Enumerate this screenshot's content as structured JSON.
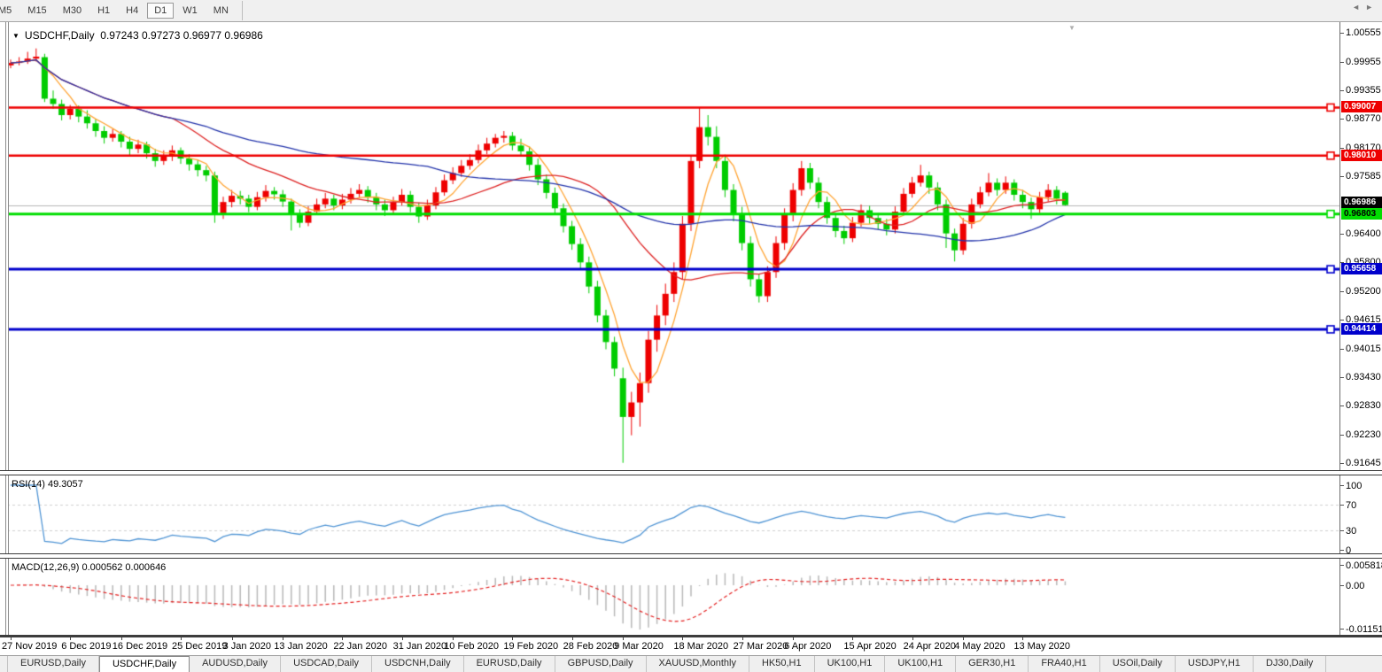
{
  "toolbar": {
    "timeframes": [
      "M5",
      "M15",
      "M30",
      "H1",
      "H4",
      "D1",
      "W1",
      "MN"
    ],
    "active_timeframe": "D1"
  },
  "chart": {
    "title": "USDCHF,Daily",
    "ohlc": "0.97243 0.97273 0.96977 0.96986",
    "open": "0.97243",
    "high": "0.97273",
    "low": "0.96977",
    "close": "0.96986",
    "shift_marker_icon": "triangle-down"
  },
  "price_axis": {
    "ticks": [
      "1.00555",
      "0.99955",
      "0.99355",
      "0.98770",
      "0.98170",
      "0.97585",
      "0.96400",
      "0.95800",
      "0.95200",
      "0.94615",
      "0.94015",
      "0.93430",
      "0.92830",
      "0.92230",
      "0.91645"
    ],
    "current_price_tag": {
      "label": "0.96986",
      "value": 0.96986,
      "bg": "#000000",
      "fg": "#ffffff"
    }
  },
  "hlines": [
    {
      "label": "0.99007",
      "value": 0.99007,
      "color": "#ee0000",
      "fg": "#ffffff",
      "width": 2.4
    },
    {
      "label": "0.98010",
      "value": 0.9801,
      "color": "#ee0000",
      "fg": "#ffffff",
      "width": 2.4
    },
    {
      "label": "0.96803",
      "value": 0.96803,
      "color": "#00dd00",
      "fg": "#000000",
      "width": 3
    },
    {
      "label": "0.95658",
      "value": 0.95658,
      "color": "#0000cc",
      "fg": "#ffffff",
      "width": 3
    },
    {
      "label": "0.94414",
      "value": 0.94414,
      "color": "#0000cc",
      "fg": "#ffffff",
      "width": 3
    }
  ],
  "rsi": {
    "label": "RSI(14)",
    "value": "49.3057",
    "scale": [
      "100",
      "70",
      "30",
      "0"
    ],
    "levels": [
      70,
      30
    ],
    "line_color": "#4f94d4"
  },
  "macd": {
    "label": "MACD(12,26,9)",
    "values": "0.000562 0.000646",
    "scale": [
      "0.005818",
      "0.00",
      "-0.01151"
    ],
    "bar_color": "#b8b8b8",
    "signal_color": "#e42222"
  },
  "tabs": {
    "items": [
      "EURUSD,Daily",
      "USDCHF,Daily",
      "AUDUSD,Daily",
      "USDCAD,Daily",
      "USDCNH,Daily",
      "EURUSD,Daily",
      "GBPUSD,Daily",
      "XAUUSD,Monthly",
      "HK50,H1",
      "UK100,H1",
      "UK100,H1",
      "GER30,H1",
      "FRA40,H1",
      "USOil,Daily",
      "USDJPY,H1",
      "DJ30,Daily"
    ],
    "active_index": 1,
    "scroll_arrows": [
      "left-arrow-icon",
      "right-arrow-icon"
    ]
  },
  "chart_data": {
    "type": "candlestick",
    "symbol": "USDCHF",
    "timeframe": "Daily",
    "title": "USDCHF,Daily",
    "up_color": "#ee0000",
    "down_color": "#00cc00",
    "price_range_visible": [
      0.91645,
      1.00555
    ],
    "current_price": 0.96986,
    "grid": false,
    "x_ticks": [
      {
        "label": "27 Nov 2019",
        "i": 0
      },
      {
        "label": "6 Dec 2019",
        "i": 7
      },
      {
        "label": "16 Dec 2019",
        "i": 13
      },
      {
        "label": "25 Dec 2019",
        "i": 20
      },
      {
        "label": "3 Jan 2020",
        "i": 26
      },
      {
        "label": "13 Jan 2020",
        "i": 32
      },
      {
        "label": "22 Jan 2020",
        "i": 39
      },
      {
        "label": "31 Jan 2020",
        "i": 46
      },
      {
        "label": "10 Feb 2020",
        "i": 52
      },
      {
        "label": "19 Feb 2020",
        "i": 59
      },
      {
        "label": "28 Feb 2020",
        "i": 66
      },
      {
        "label": "9 Mar 2020",
        "i": 72
      },
      {
        "label": "18 Mar 2020",
        "i": 79
      },
      {
        "label": "27 Mar 2020",
        "i": 86
      },
      {
        "label": "6 Apr 2020",
        "i": 92
      },
      {
        "label": "15 Apr 2020",
        "i": 99
      },
      {
        "label": "24 Apr 2020",
        "i": 106
      },
      {
        "label": "4 May 2020",
        "i": 112
      },
      {
        "label": "13 May 2020",
        "i": 119
      }
    ],
    "moving_averages": [
      {
        "period": 5,
        "color": "#ffa433"
      },
      {
        "period": 20,
        "color": "#dd2222"
      },
      {
        "period": 50,
        "color": "#2233aa"
      }
    ],
    "candles": [
      [
        0.9988,
        1.0,
        0.9982,
        0.9993
      ],
      [
        0.9993,
        1.0005,
        0.9988,
        0.9996
      ],
      [
        0.9996,
        1.0016,
        0.9991,
        1.0002
      ],
      [
        1.0002,
        1.0023,
        0.9996,
        1.0006
      ],
      [
        1.0005,
        1.0012,
        0.9912,
        0.9919
      ],
      [
        0.9919,
        0.9936,
        0.9898,
        0.9908
      ],
      [
        0.9908,
        0.9917,
        0.9874,
        0.9885
      ],
      [
        0.9885,
        0.9906,
        0.9876,
        0.9898
      ],
      [
        0.9898,
        0.9905,
        0.987,
        0.9882
      ],
      [
        0.9882,
        0.9895,
        0.9857,
        0.9868
      ],
      [
        0.9868,
        0.9877,
        0.984,
        0.9852
      ],
      [
        0.9852,
        0.9862,
        0.9826,
        0.9838
      ],
      [
        0.9838,
        0.9856,
        0.983,
        0.9846
      ],
      [
        0.9846,
        0.9852,
        0.9818,
        0.983
      ],
      [
        0.983,
        0.984,
        0.9802,
        0.9815
      ],
      [
        0.9815,
        0.9834,
        0.9806,
        0.9824
      ],
      [
        0.9824,
        0.983,
        0.9795,
        0.9806
      ],
      [
        0.9806,
        0.9815,
        0.9778,
        0.979
      ],
      [
        0.979,
        0.9812,
        0.9782,
        0.98
      ],
      [
        0.98,
        0.9822,
        0.979,
        0.9812
      ],
      [
        0.9812,
        0.9818,
        0.9784,
        0.9795
      ],
      [
        0.9795,
        0.9804,
        0.977,
        0.9783
      ],
      [
        0.9783,
        0.9792,
        0.9758,
        0.9771
      ],
      [
        0.9771,
        0.978,
        0.9748,
        0.976
      ],
      [
        0.976,
        0.9768,
        0.9662,
        0.968
      ],
      [
        0.968,
        0.9716,
        0.967,
        0.9705
      ],
      [
        0.9705,
        0.973,
        0.9694,
        0.9718
      ],
      [
        0.9718,
        0.9728,
        0.97,
        0.9712
      ],
      [
        0.9712,
        0.972,
        0.9684,
        0.9695
      ],
      [
        0.9695,
        0.9726,
        0.9688,
        0.9715
      ],
      [
        0.9715,
        0.974,
        0.9706,
        0.9728
      ],
      [
        0.9728,
        0.9736,
        0.971,
        0.9721
      ],
      [
        0.9721,
        0.973,
        0.9695,
        0.9706
      ],
      [
        0.9706,
        0.9712,
        0.9646,
        0.968
      ],
      [
        0.968,
        0.969,
        0.9652,
        0.9662
      ],
      [
        0.9662,
        0.9696,
        0.9655,
        0.9685
      ],
      [
        0.9685,
        0.9712,
        0.9678,
        0.97
      ],
      [
        0.97,
        0.9724,
        0.9692,
        0.9712
      ],
      [
        0.9712,
        0.972,
        0.9688,
        0.9698
      ],
      [
        0.9698,
        0.9722,
        0.969,
        0.971
      ],
      [
        0.971,
        0.9734,
        0.9702,
        0.9722
      ],
      [
        0.9722,
        0.9742,
        0.9714,
        0.973
      ],
      [
        0.973,
        0.9738,
        0.9704,
        0.9715
      ],
      [
        0.9715,
        0.9724,
        0.9688,
        0.97
      ],
      [
        0.97,
        0.971,
        0.9676,
        0.9688
      ],
      [
        0.9688,
        0.9716,
        0.968,
        0.9705
      ],
      [
        0.9705,
        0.9732,
        0.9698,
        0.972
      ],
      [
        0.972,
        0.9728,
        0.9684,
        0.9695
      ],
      [
        0.9695,
        0.9704,
        0.9662,
        0.9675
      ],
      [
        0.9675,
        0.971,
        0.9668,
        0.9698
      ],
      [
        0.9698,
        0.9736,
        0.969,
        0.9725
      ],
      [
        0.9725,
        0.9762,
        0.9718,
        0.975
      ],
      [
        0.975,
        0.9777,
        0.9742,
        0.9765
      ],
      [
        0.9765,
        0.9792,
        0.9757,
        0.978
      ],
      [
        0.978,
        0.9804,
        0.9772,
        0.9792
      ],
      [
        0.9792,
        0.9824,
        0.9785,
        0.9812
      ],
      [
        0.9812,
        0.9838,
        0.9804,
        0.9826
      ],
      [
        0.9826,
        0.9846,
        0.9818,
        0.9838
      ],
      [
        0.9838,
        0.9852,
        0.9828,
        0.9842
      ],
      [
        0.9842,
        0.985,
        0.9812,
        0.9822
      ],
      [
        0.9822,
        0.9836,
        0.98,
        0.981
      ],
      [
        0.981,
        0.982,
        0.977,
        0.9782
      ],
      [
        0.9782,
        0.9795,
        0.974,
        0.9752
      ],
      [
        0.9752,
        0.9762,
        0.9712,
        0.9724
      ],
      [
        0.9724,
        0.9735,
        0.968,
        0.9692
      ],
      [
        0.9692,
        0.9702,
        0.9642,
        0.9655
      ],
      [
        0.9655,
        0.9666,
        0.9606,
        0.9618
      ],
      [
        0.9618,
        0.963,
        0.9566,
        0.958
      ],
      [
        0.958,
        0.9592,
        0.9516,
        0.953
      ],
      [
        0.953,
        0.9542,
        0.9456,
        0.947
      ],
      [
        0.947,
        0.9482,
        0.94,
        0.9415
      ],
      [
        0.9415,
        0.9426,
        0.9344,
        0.936
      ],
      [
        0.934,
        0.9362,
        0.9165,
        0.926
      ],
      [
        0.926,
        0.9312,
        0.9222,
        0.929
      ],
      [
        0.929,
        0.9352,
        0.924,
        0.933
      ],
      [
        0.933,
        0.9438,
        0.931,
        0.942
      ],
      [
        0.942,
        0.9492,
        0.9395,
        0.947
      ],
      [
        0.947,
        0.9536,
        0.945,
        0.9515
      ],
      [
        0.9515,
        0.958,
        0.9498,
        0.956
      ],
      [
        0.956,
        0.9676,
        0.9545,
        0.966
      ],
      [
        0.966,
        0.98,
        0.9645,
        0.979
      ],
      [
        0.979,
        0.9901,
        0.9775,
        0.986
      ],
      [
        0.986,
        0.9885,
        0.9822,
        0.984
      ],
      [
        0.984,
        0.9862,
        0.9775,
        0.979
      ],
      [
        0.979,
        0.9802,
        0.9715,
        0.973
      ],
      [
        0.973,
        0.9742,
        0.9665,
        0.968
      ],
      [
        0.968,
        0.9695,
        0.9605,
        0.962
      ],
      [
        0.962,
        0.9634,
        0.953,
        0.9545
      ],
      [
        0.9545,
        0.9556,
        0.9497,
        0.951
      ],
      [
        0.951,
        0.9572,
        0.9498,
        0.956
      ],
      [
        0.956,
        0.9634,
        0.9548,
        0.962
      ],
      [
        0.962,
        0.9692,
        0.9606,
        0.968
      ],
      [
        0.968,
        0.9744,
        0.9665,
        0.973
      ],
      [
        0.973,
        0.979,
        0.9718,
        0.9775
      ],
      [
        0.9775,
        0.9786,
        0.9732,
        0.9745
      ],
      [
        0.9745,
        0.9756,
        0.9692,
        0.9705
      ],
      [
        0.9705,
        0.9716,
        0.966,
        0.9672
      ],
      [
        0.9672,
        0.9682,
        0.9632,
        0.9645
      ],
      [
        0.9645,
        0.9656,
        0.9618,
        0.963
      ],
      [
        0.963,
        0.9674,
        0.9622,
        0.9662
      ],
      [
        0.9662,
        0.97,
        0.9654,
        0.9688
      ],
      [
        0.9688,
        0.9697,
        0.966,
        0.9672
      ],
      [
        0.9672,
        0.9682,
        0.9648,
        0.966
      ],
      [
        0.966,
        0.967,
        0.9636,
        0.9648
      ],
      [
        0.9648,
        0.9696,
        0.964,
        0.9685
      ],
      [
        0.9685,
        0.9734,
        0.9678,
        0.9722
      ],
      [
        0.9722,
        0.9757,
        0.9714,
        0.9745
      ],
      [
        0.9745,
        0.9782,
        0.9737,
        0.976
      ],
      [
        0.976,
        0.9768,
        0.9722,
        0.9735
      ],
      [
        0.9735,
        0.9746,
        0.9688,
        0.97
      ],
      [
        0.97,
        0.971,
        0.961,
        0.964
      ],
      [
        0.964,
        0.965,
        0.9582,
        0.9605
      ],
      [
        0.9605,
        0.9672,
        0.9596,
        0.966
      ],
      [
        0.966,
        0.9712,
        0.965,
        0.97
      ],
      [
        0.97,
        0.9737,
        0.9692,
        0.9725
      ],
      [
        0.9725,
        0.9765,
        0.9717,
        0.9745
      ],
      [
        0.9745,
        0.9754,
        0.9718,
        0.973
      ],
      [
        0.973,
        0.9758,
        0.9722,
        0.9745
      ],
      [
        0.9745,
        0.9752,
        0.9708,
        0.972
      ],
      [
        0.972,
        0.973,
        0.9692,
        0.9705
      ],
      [
        0.9705,
        0.9714,
        0.967,
        0.969
      ],
      [
        0.969,
        0.9726,
        0.9682,
        0.9715
      ],
      [
        0.9715,
        0.9742,
        0.9706,
        0.973
      ],
      [
        0.973,
        0.9738,
        0.97,
        0.9712
      ],
      [
        0.97243,
        0.97273,
        0.96977,
        0.96986
      ]
    ]
  }
}
